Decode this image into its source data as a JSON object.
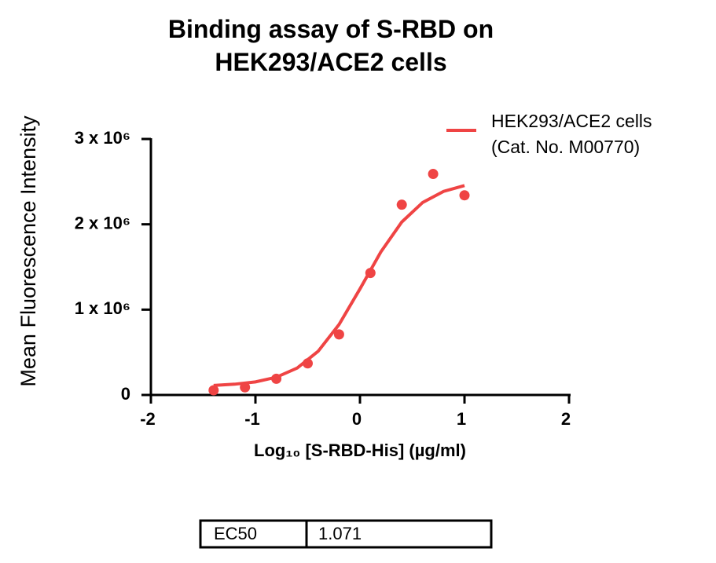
{
  "chart_data": {
    "type": "scatter",
    "title": "Binding assay of S-RBD on HEK293/ACE2 cells",
    "x_label": "Log₁₀ [S-RBD-His] (µg/ml)",
    "y_label": "Mean Fluorescence Intensity",
    "xlim": [
      -2,
      2
    ],
    "xticks": [
      -2,
      -1,
      0,
      1,
      2
    ],
    "ylim": [
      0,
      3000000
    ],
    "yticks": [
      0,
      {
        "value": 1000000,
        "label": "1 x 10⁶"
      },
      {
        "value": 2000000,
        "label": "2 x 10⁶"
      },
      {
        "value": 3000000,
        "label": "3 x 10⁶"
      }
    ],
    "legend_position": "upper right",
    "legend_subtitle": "(Cat. No. M00770)",
    "series": [
      {
        "name": "HEK293/ACE2 cells",
        "color": "#ef4444",
        "x": [
          -1.4,
          -1.1,
          -0.8,
          -0.5,
          -0.2,
          0.1,
          0.4,
          0.7,
          1.0
        ],
        "values": [
          55000,
          90000,
          190000,
          370000,
          710000,
          1430000,
          2230000,
          2590000,
          2340000
        ],
        "fit_x": [
          -1.4,
          -1.2,
          -1.0,
          -0.8,
          -0.6,
          -0.4,
          -0.2,
          0.0,
          0.2,
          0.4,
          0.6,
          0.8,
          1.0
        ],
        "fit_values": [
          112000,
          126000,
          153000,
          208000,
          316000,
          512000,
          826000,
          1243000,
          1677000,
          2027000,
          2256000,
          2386000,
          2454000
        ]
      }
    ]
  },
  "ec50_table": {
    "label": "EC50",
    "value": "1.071"
  }
}
